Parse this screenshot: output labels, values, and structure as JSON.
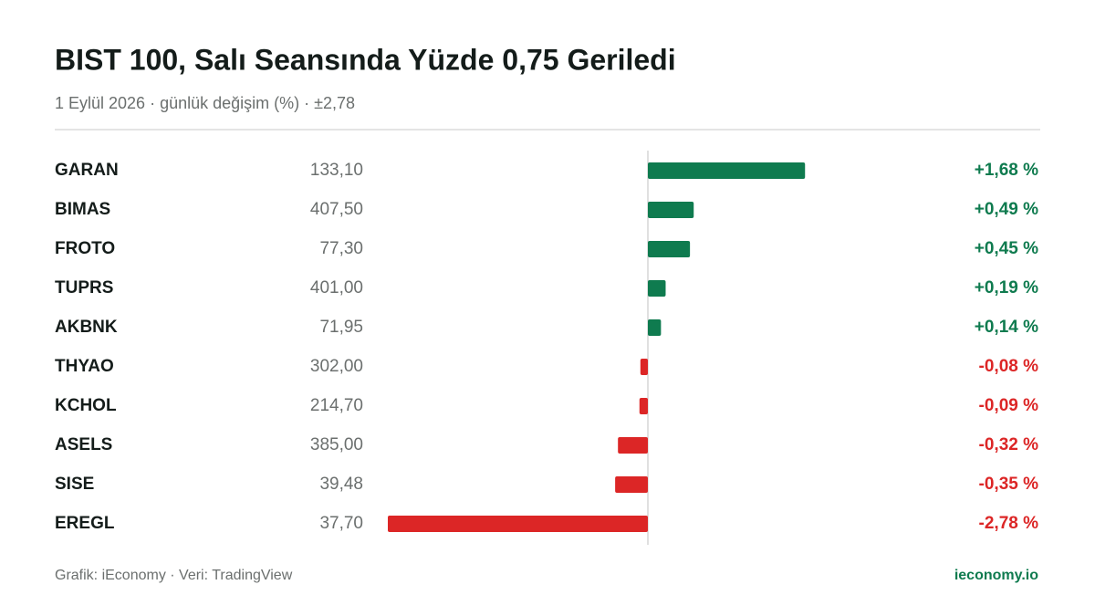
{
  "chart_data": {
    "type": "diverging-bar",
    "title": "BIST 100, Salı Seansında Yüzde 0,75 Geriledi",
    "subtitle": "1 Eylül 2026 · günlük değişim (%) · ±2,78",
    "categories": [
      "GARAN",
      "BIMAS",
      "FROTO",
      "TUPRS",
      "AKBNK",
      "THYAO",
      "KCHOL",
      "ASELS",
      "SISE",
      "EREGL"
    ],
    "prices": [
      "133,10",
      "407,50",
      "77,30",
      "401,00",
      "71,95",
      "302,00",
      "214,70",
      "385,00",
      "39,48",
      "37,70"
    ],
    "values": [
      1.68,
      0.49,
      0.45,
      0.19,
      0.14,
      -0.08,
      -0.09,
      -0.32,
      -0.35,
      -2.78
    ],
    "value_labels": [
      "+1,68 %",
      "+0,49 %",
      "+0,45 %",
      "+0,19 %",
      "+0,14 %",
      "-0,08 %",
      "-0,09 %",
      "-0,32 %",
      "-0,35 %",
      "-2,78 %"
    ],
    "xlim": [
      -2.78,
      2.78
    ],
    "positive_color": "#0f7b4f",
    "negative_color": "#dc2626",
    "footer_source": "Grafik: iEconomy · Veri: TradingView",
    "footer_brand": "ieconomy.io"
  }
}
